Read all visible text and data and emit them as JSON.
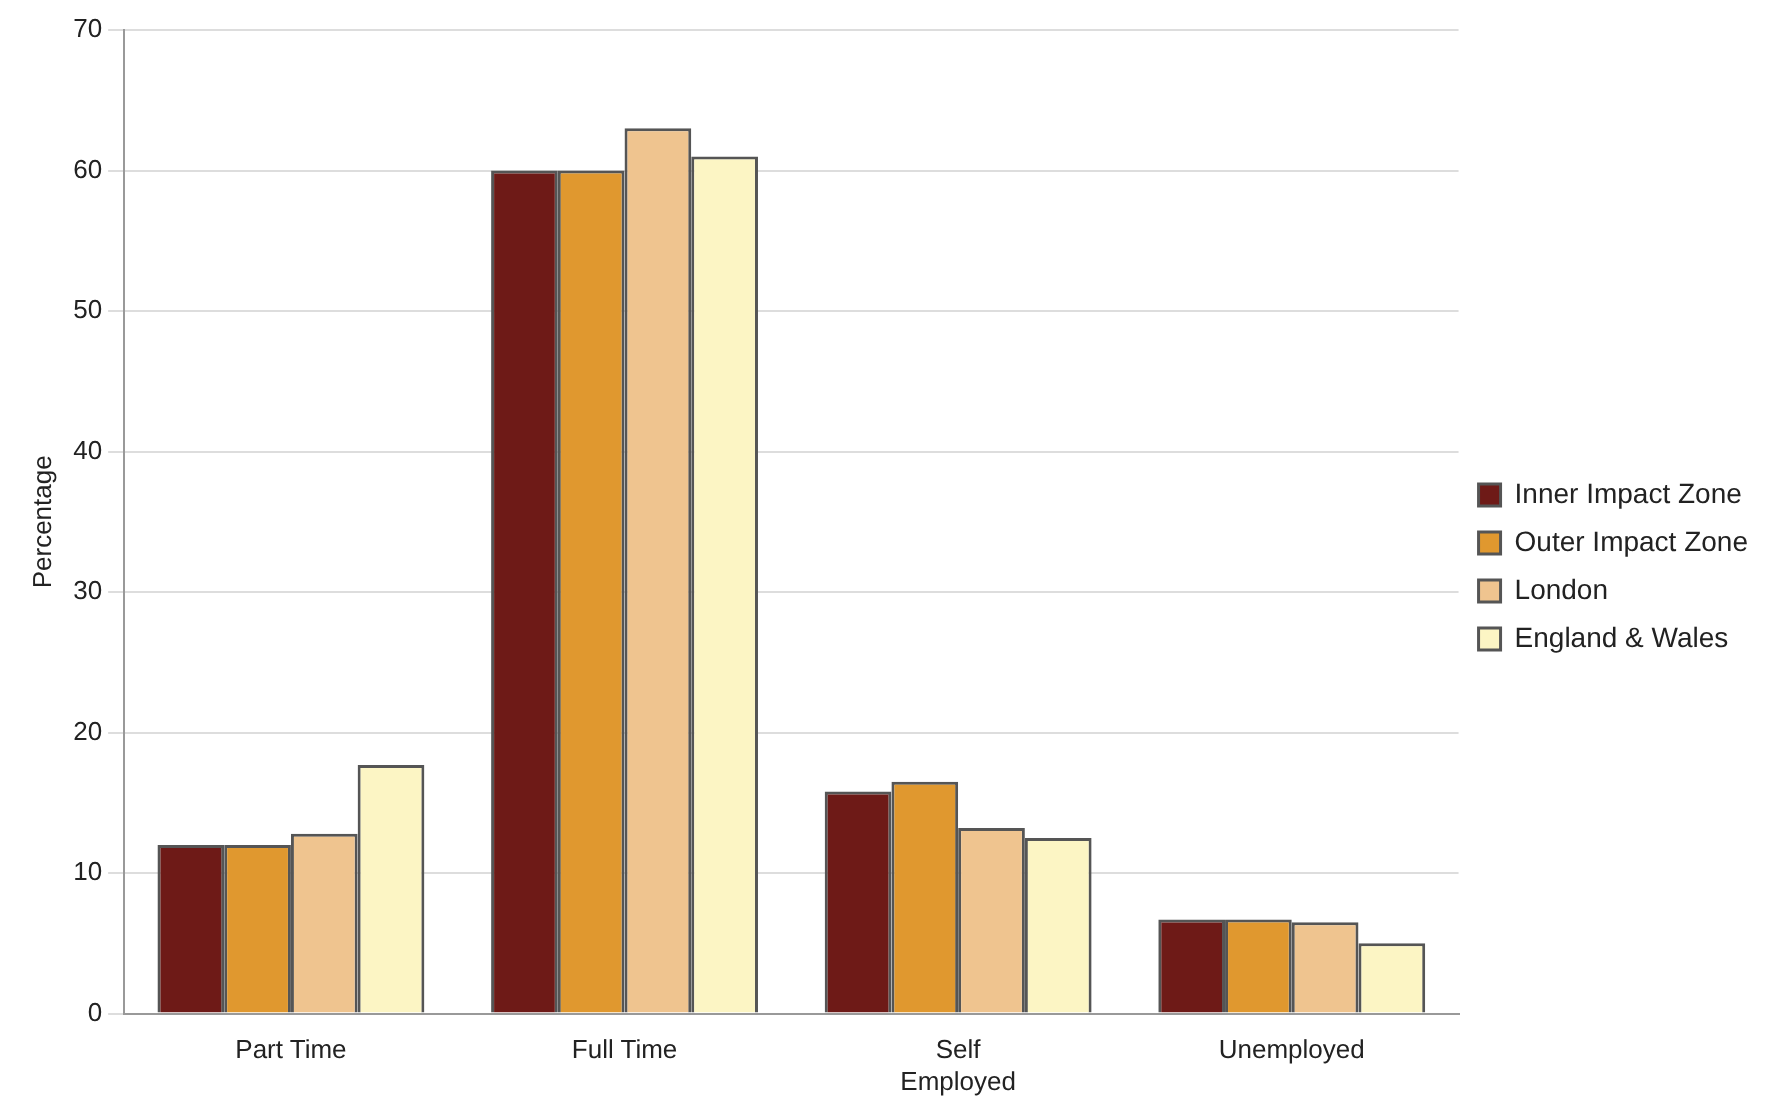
{
  "chart_data": {
    "type": "bar",
    "ylabel": "Percentage",
    "categories": [
      "Part Time",
      "Full Time",
      "Self Employed",
      "Unemployed"
    ],
    "series": [
      {
        "name": "Inner Impact Zone",
        "color": "#6e1a17",
        "values": [
          12,
          60,
          15.8,
          6.7
        ]
      },
      {
        "name": "Outer Impact Zone",
        "color": "#e0982f",
        "values": [
          12,
          60,
          16.5,
          6.7
        ]
      },
      {
        "name": "London",
        "color": "#efc48f",
        "values": [
          12.8,
          63,
          13.2,
          6.5
        ]
      },
      {
        "name": "England & Wales",
        "color": "#fcf5c4",
        "values": [
          17.7,
          61,
          12.5,
          5
        ]
      }
    ],
    "ylim": [
      0,
      70
    ],
    "yticks": [
      0,
      10,
      20,
      30,
      40,
      50,
      60,
      70
    ],
    "grid": "y",
    "legend": "right"
  }
}
